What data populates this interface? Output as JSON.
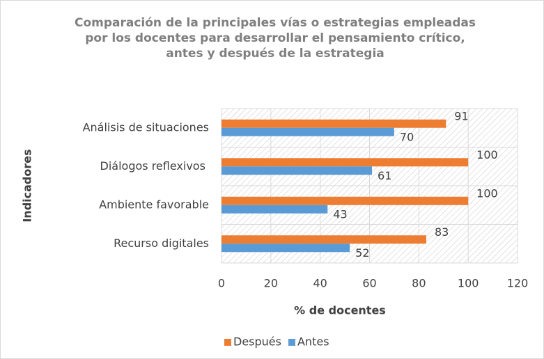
{
  "chart_data": {
    "type": "hbar",
    "title": "Comparación de la principales vías o estrategias empleadas por los docentes para desarrollar el pensamiento crítico, antes y después de la estrategia",
    "xlabel": "% de docentes",
    "ylabel": "Indicadores",
    "categories": [
      "Análisis de situaciones",
      "Diálogos reflexivos ",
      "Ambiente favorable",
      "Recurso digitales"
    ],
    "series": [
      {
        "name": "Después",
        "color": "#ed7d31",
        "values": [
          91,
          100,
          100,
          83
        ]
      },
      {
        "name": "Antes",
        "color": "#5b9bd5",
        "values": [
          70,
          61,
          43,
          52
        ]
      }
    ],
    "xlim": [
      0,
      120
    ],
    "xticks": [
      0,
      20,
      40,
      60,
      80,
      100,
      120
    ],
    "grid": true,
    "legend": "bottom"
  }
}
